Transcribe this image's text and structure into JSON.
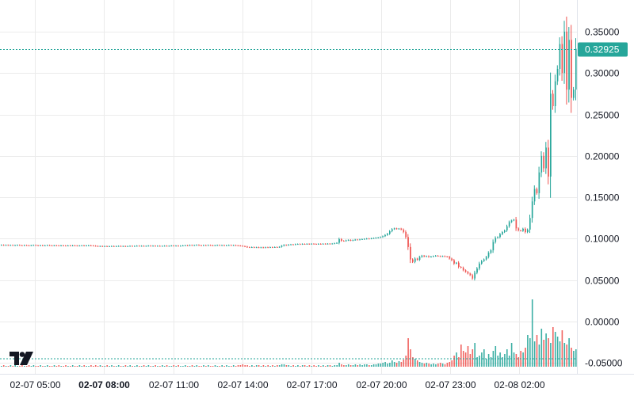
{
  "chart_data": {
    "type": "candlestick",
    "title": "",
    "colors": {
      "up": "#26a69a",
      "down": "#ef5350",
      "grid": "#ebebeb",
      "text": "#131722"
    },
    "y_ticks": [
      "0.35000",
      "0.30000",
      "0.25000",
      "0.20000",
      "0.15000",
      "0.10000",
      "0.05000",
      "0.00000",
      "-0.05000"
    ],
    "y_tick_values": [
      0.35,
      0.3,
      0.25,
      0.2,
      0.15,
      0.1,
      0.05,
      0.0,
      -0.05
    ],
    "ylim": [
      -0.05,
      0.35
    ],
    "x_ticks": [
      {
        "label": "02-07 05:00",
        "bold": false
      },
      {
        "label": "02-07 08:00",
        "bold": true
      },
      {
        "label": "02-07 11:00",
        "bold": false
      },
      {
        "label": "02-07 14:00",
        "bold": false
      },
      {
        "label": "02-07 17:00",
        "bold": false
      },
      {
        "label": "02-07 20:00",
        "bold": false
      },
      {
        "label": "02-07 23:00",
        "bold": false
      },
      {
        "label": "02-08 02:00",
        "bold": false
      }
    ],
    "last_price": 0.32925,
    "last_price_label": "0.32925",
    "closes": [
      0.0925,
      0.0922,
      0.0924,
      0.0921,
      0.0923,
      0.092,
      0.0922,
      0.0924,
      0.0921,
      0.0919,
      0.0922,
      0.092,
      0.0918,
      0.0921,
      0.0923,
      0.092,
      0.0919,
      0.0921,
      0.0918,
      0.092,
      0.0922,
      0.0919,
      0.0917,
      0.092,
      0.0918,
      0.0916,
      0.0919,
      0.0917,
      0.0915,
      0.0918,
      0.0916,
      0.0919,
      0.0917,
      0.0915,
      0.0917,
      0.0919,
      0.0916,
      0.0918,
      0.092,
      0.0917,
      0.0915,
      0.0912,
      0.0909,
      0.0911,
      0.0908,
      0.091,
      0.0907,
      0.0909,
      0.0911,
      0.0908,
      0.091,
      0.0912,
      0.0909,
      0.0911,
      0.0908,
      0.091,
      0.0913,
      0.091,
      0.0912,
      0.0915,
      0.0912,
      0.0914,
      0.0911,
      0.0913,
      0.0916,
      0.0913,
      0.0915,
      0.0912,
      0.0914,
      0.0911,
      0.0913,
      0.0915,
      0.0912,
      0.0914,
      0.0917,
      0.0914,
      0.0916,
      0.0913,
      0.0915,
      0.0918,
      0.0921,
      0.0918,
      0.0923,
      0.092,
      0.0922,
      0.0925,
      0.0921,
      0.0919,
      0.0922,
      0.092,
      0.0923,
      0.0921,
      0.0918,
      0.0921,
      0.0923,
      0.092,
      0.0922,
      0.0919,
      0.0921,
      0.0923,
      0.092,
      0.0922,
      0.0919,
      0.0917,
      0.0914,
      0.091,
      0.0905,
      0.0898,
      0.0896,
      0.0898,
      0.0895,
      0.0897,
      0.0894,
      0.0896,
      0.0893,
      0.0897,
      0.0895,
      0.0898,
      0.0896,
      0.0899,
      0.0897,
      0.0902,
      0.0915,
      0.0925,
      0.0922,
      0.0928,
      0.0931,
      0.0929,
      0.0934,
      0.0936,
      0.0933,
      0.0937,
      0.0935,
      0.0938,
      0.0936,
      0.0939,
      0.0937,
      0.0935,
      0.0938,
      0.0936,
      0.0939,
      0.0937,
      0.094,
      0.0938,
      0.0941,
      0.0945,
      0.095,
      0.0995,
      0.0975,
      0.0972,
      0.098,
      0.0985,
      0.0978,
      0.0983,
      0.099,
      0.0987,
      0.0992,
      0.0995,
      0.0998,
      0.1002,
      0.1,
      0.1005,
      0.1008,
      0.1012,
      0.1015,
      0.102,
      0.103,
      0.1045,
      0.106,
      0.109,
      0.1115,
      0.1125,
      0.1118,
      0.1122,
      0.111,
      0.108,
      0.102,
      0.09,
      0.075,
      0.072,
      0.076,
      0.0745,
      0.078,
      0.0795,
      0.0785,
      0.079,
      0.078,
      0.0785,
      0.079,
      0.0795,
      0.079,
      0.0786,
      0.079,
      0.0785,
      0.0782,
      0.076,
      0.074,
      0.07,
      0.071,
      0.066,
      0.065,
      0.062,
      0.06,
      0.058,
      0.056,
      0.052,
      0.059,
      0.064,
      0.07,
      0.073,
      0.075,
      0.078,
      0.083,
      0.086,
      0.096,
      0.101,
      0.102,
      0.1055,
      0.108,
      0.11,
      0.115,
      0.12,
      0.122,
      0.123,
      0.1125,
      0.11,
      0.1095,
      0.112,
      0.108,
      0.111,
      0.125,
      0.145,
      0.16,
      0.155,
      0.18,
      0.2,
      0.185,
      0.21,
      0.175,
      0.275,
      0.26,
      0.29,
      0.305,
      0.335,
      0.3,
      0.35,
      0.28,
      0.34,
      0.27,
      0.28,
      0.32925
    ],
    "volumes": [
      1,
      2,
      1,
      1,
      2,
      1,
      2,
      1,
      1,
      2,
      1,
      1,
      2,
      1,
      2,
      1,
      1,
      2,
      1,
      1,
      2,
      1,
      1,
      2,
      1,
      2,
      1,
      1,
      2,
      1,
      1,
      2,
      1,
      1,
      2,
      1,
      2,
      1,
      1,
      2,
      1,
      2,
      1,
      2,
      1,
      1,
      2,
      1,
      2,
      1,
      1,
      2,
      1,
      1,
      2,
      1,
      2,
      1,
      1,
      2,
      1,
      1,
      2,
      1,
      2,
      1,
      1,
      2,
      1,
      1,
      2,
      1,
      2,
      1,
      1,
      2,
      1,
      2,
      1,
      1,
      2,
      1,
      1,
      2,
      1,
      2,
      1,
      1,
      2,
      1,
      2,
      1,
      1,
      2,
      1,
      1,
      2,
      1,
      2,
      1,
      1,
      2,
      1,
      2,
      2,
      3,
      2,
      2,
      1,
      2,
      1,
      2,
      2,
      1,
      2,
      1,
      2,
      1,
      2,
      1,
      2,
      2,
      3,
      3,
      2,
      2,
      1,
      2,
      1,
      2,
      1,
      2,
      2,
      1,
      2,
      1,
      2,
      1,
      2,
      1,
      2,
      1,
      2,
      2,
      1,
      2,
      2,
      5,
      3,
      2,
      2,
      3,
      2,
      2,
      3,
      2,
      3,
      2,
      3,
      3,
      2,
      2,
      3,
      3,
      4,
      4,
      5,
      6,
      4,
      5,
      8,
      6,
      5,
      7,
      6,
      9,
      14,
      36,
      22,
      12,
      10,
      8,
      6,
      5,
      4,
      5,
      4,
      3,
      4,
      3,
      4,
      5,
      4,
      3,
      5,
      6,
      8,
      14,
      18,
      12,
      28,
      20,
      18,
      26,
      16,
      22,
      30,
      12,
      14,
      18,
      22,
      10,
      16,
      12,
      20,
      26,
      14,
      18,
      12,
      16,
      22,
      14,
      30,
      18,
      16,
      12,
      20,
      18,
      24,
      40,
      36,
      85,
      32,
      40,
      28,
      48,
      34,
      42,
      36,
      30,
      50,
      44,
      38,
      32,
      46,
      30,
      28,
      36,
      24,
      20,
      22
    ]
  }
}
